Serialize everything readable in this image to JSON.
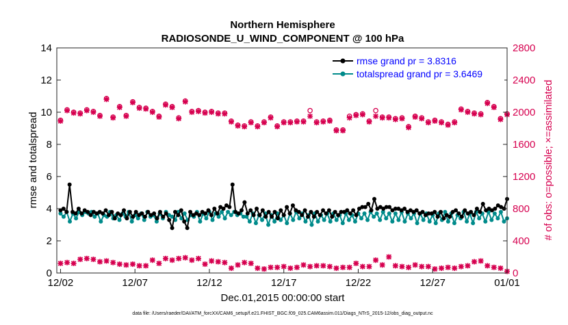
{
  "chart_data": {
    "type": "line",
    "title_line1": "Northern Hemisphere",
    "title_line2": "RADIOSONDE_U_WIND_COMPONENT @ 100 hPa",
    "xlabel": "Dec.01,2015 00:00:00 start",
    "ylabel_left": "rmse and totalspread",
    "ylabel_right": "# of obs: o=possible; ×=assimilated",
    "footnote": "data file: /Users/raeder/DAI/ATM_forcXX/CAM6_setup/f.e21.FHIST_BGC.f09_025.CAM6assim.011/Diags_NTrS_2015-12/obs_diag_output.nc",
    "x_tick_labels": [
      "12/02",
      "12/07",
      "12/12",
      "12/17",
      "12/22",
      "12/27",
      "01/01"
    ],
    "x_tick_days": [
      1,
      6,
      11,
      16,
      21,
      26,
      31
    ],
    "xlim_days": [
      0.75,
      31
    ],
    "ylim_left": [
      0,
      14
    ],
    "left_ticks": [
      "0",
      "2",
      "4",
      "6",
      "8",
      "10",
      "12",
      "14"
    ],
    "ylim_right": [
      0,
      2800
    ],
    "right_ticks": [
      "0",
      "400",
      "800",
      "1200",
      "1600",
      "2000",
      "2400",
      "2800"
    ],
    "legend": [
      "rmse grand pr = 3.8316",
      "totalspread grand pr = 3.6469"
    ],
    "colors": {
      "rmse": "#000000",
      "spread": "#008b8b",
      "obs": "#d6004f",
      "legend_text": "#0000ff"
    },
    "series": [
      {
        "name": "rmse",
        "values": [
          3.9,
          4.0,
          3.8,
          5.5,
          3.8,
          3.7,
          4.0,
          3.7,
          3.9,
          3.8,
          3.6,
          3.8,
          3.7,
          3.8,
          3.7,
          3.9,
          3.6,
          3.8,
          3.4,
          3.7,
          3.6,
          3.9,
          3.4,
          3.8,
          3.5,
          3.8,
          3.6,
          3.7,
          3.5,
          3.8,
          3.6,
          3.7,
          3.4,
          3.8,
          3.5,
          3.7,
          3.3,
          2.8,
          3.8,
          3.6,
          3.9,
          3.2,
          2.8,
          3.8,
          3.6,
          3.7,
          3.6,
          3.8,
          3.7,
          3.9,
          3.6,
          4.0,
          3.7,
          4.1,
          4.0,
          4.2,
          4.1,
          5.5,
          3.8,
          3.7,
          3.9,
          4.4,
          3.7,
          3.9,
          3.6,
          4.0,
          3.6,
          3.9,
          3.5,
          3.8,
          3.5,
          3.8,
          3.4,
          3.9,
          3.6,
          4.1,
          3.7,
          4.2,
          3.9,
          3.8,
          3.6,
          3.9,
          3.5,
          3.8,
          3.5,
          3.8,
          3.6,
          3.9,
          3.7,
          3.9,
          3.5,
          3.8,
          3.6,
          3.8,
          3.8,
          3.9,
          3.7,
          3.9,
          3.6,
          4.0,
          4.1,
          4.1,
          4.3,
          3.9,
          4.6,
          4.0,
          4.1,
          4.0,
          4.1,
          4.1,
          3.9,
          4.0,
          4.0,
          3.9,
          4.0,
          3.8,
          3.9,
          3.8,
          3.9,
          3.7,
          3.8,
          3.6,
          3.7,
          3.7,
          3.8,
          3.5,
          3.8,
          3.4,
          3.6,
          3.5,
          3.8,
          3.9,
          3.7,
          3.5,
          3.9,
          3.7,
          3.8,
          3.6,
          4.0,
          3.8,
          4.3,
          3.9,
          4.0,
          3.9,
          4.0,
          4.2,
          4.1,
          4.0,
          4.6
        ]
      },
      {
        "name": "totalspread",
        "values": [
          3.7,
          3.5,
          3.8,
          3.2,
          3.7,
          3.4,
          3.8,
          3.6,
          3.8,
          3.7,
          3.8,
          3.5,
          3.7,
          3.2,
          3.6,
          3.5,
          3.8,
          3.4,
          3.6,
          3.3,
          3.7,
          3.5,
          3.8,
          3.2,
          3.6,
          3.4,
          3.7,
          3.3,
          3.8,
          3.5,
          3.6,
          3.2,
          3.7,
          3.4,
          3.8,
          3.6,
          3.5,
          3.3,
          3.8,
          3.4,
          3.7,
          3.3,
          3.6,
          3.5,
          3.8,
          3.2,
          3.7,
          3.4,
          3.8,
          3.3,
          3.7,
          3.5,
          3.8,
          3.4,
          3.8,
          3.6,
          3.8,
          3.6,
          3.7,
          3.5,
          3.5,
          3.2,
          3.7,
          3.1,
          3.6,
          3.3,
          3.7,
          3.0,
          3.6,
          3.2,
          3.7,
          3.3,
          3.6,
          3.1,
          3.7,
          3.3,
          3.8,
          3.4,
          3.7,
          3.2,
          3.6,
          3.0,
          3.7,
          3.2,
          3.6,
          3.3,
          3.7,
          3.2,
          3.7,
          3.3,
          3.6,
          3.1,
          3.7,
          3.3,
          3.6,
          3.2,
          3.7,
          3.4,
          3.7,
          3.3,
          3.8,
          3.5,
          3.7,
          3.3,
          3.8,
          3.4,
          3.7,
          3.2,
          3.7,
          3.3,
          3.8,
          3.2,
          3.7,
          3.4,
          3.7,
          3.1,
          3.7,
          3.3,
          3.7,
          3.2,
          3.6,
          3.1,
          3.7,
          3.3,
          3.8,
          3.2,
          3.7,
          3.1,
          3.6,
          3.4,
          3.8,
          3.2,
          3.7,
          3.1,
          3.8,
          3.4,
          3.7,
          3.2,
          3.8,
          3.3,
          3.7,
          3.4,
          3.8,
          3.2,
          3.4
        ]
      },
      {
        "name": "obs_possible",
        "values": [
          1900,
          2030,
          2000,
          1990,
          2030,
          2010,
          1960,
          2170,
          1940,
          2070,
          1960,
          2130,
          2060,
          2050,
          2010,
          1950,
          2100,
          2070,
          1930,
          2140,
          2010,
          2020,
          2000,
          2010,
          1990,
          1990,
          1890,
          1840,
          1830,
          1880,
          1830,
          1880,
          1940,
          1830,
          1880,
          1880,
          1890,
          1890,
          2020,
          1880,
          1890,
          1900,
          1780,
          1780,
          1950,
          1970,
          1980,
          1890,
          2020,
          1940,
          1940,
          1920,
          1930,
          1820,
          1950,
          1930,
          1880,
          1900,
          1880,
          1850,
          1880,
          2040,
          2010,
          1990,
          1980,
          2120,
          2070,
          1920,
          1980
        ]
      },
      {
        "name": "obs_assimilated",
        "values": [
          1890,
          2020,
          1990,
          1980,
          2020,
          2000,
          1950,
          2160,
          1930,
          2060,
          1950,
          2120,
          2050,
          2040,
          2000,
          1940,
          2090,
          2060,
          1920,
          2130,
          2000,
          2010,
          1990,
          2000,
          1980,
          1980,
          1880,
          1830,
          1820,
          1870,
          1820,
          1870,
          1930,
          1820,
          1870,
          1870,
          1880,
          1880,
          1950,
          1870,
          1880,
          1890,
          1770,
          1770,
          1930,
          1960,
          1970,
          1880,
          1950,
          1930,
          1930,
          1910,
          1920,
          1810,
          1940,
          1920,
          1870,
          1890,
          1870,
          1840,
          1870,
          2030,
          2000,
          1980,
          1970,
          2110,
          2060,
          1910,
          1970
        ]
      },
      {
        "name": "obs_lower",
        "values": [
          120,
          130,
          120,
          170,
          180,
          170,
          140,
          150,
          130,
          110,
          100,
          110,
          90,
          90,
          160,
          120,
          180,
          160,
          180,
          190,
          160,
          180,
          110,
          150,
          140,
          130,
          60,
          100,
          130,
          120,
          60,
          50,
          70,
          70,
          80,
          60,
          70,
          100,
          80,
          90,
          90,
          80,
          60,
          70,
          70,
          120,
          80,
          80,
          160,
          100,
          200,
          90,
          80,
          70,
          100,
          80,
          80,
          50,
          60,
          70,
          60,
          80,
          90,
          140,
          150,
          90,
          70,
          60,
          20
        ]
      }
    ]
  }
}
